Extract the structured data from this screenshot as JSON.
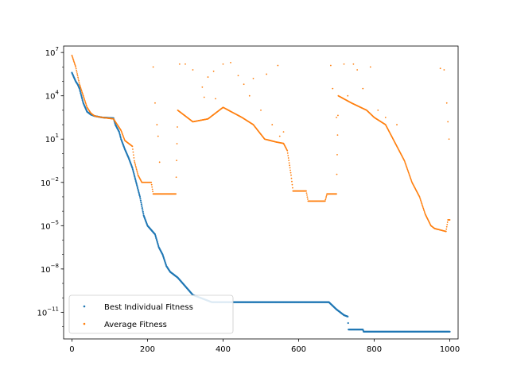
{
  "chart_data": {
    "type": "scatter",
    "title": "",
    "xlabel": "",
    "ylabel": "",
    "yscale": "log",
    "xlim": [
      -22,
      1022
    ],
    "ylim_log10": [
      -12.85,
      7.45
    ],
    "x_ticks": [
      {
        "value": 0,
        "label": "0"
      },
      {
        "value": 200,
        "label": "200"
      },
      {
        "value": 400,
        "label": "400"
      },
      {
        "value": 600,
        "label": "600"
      },
      {
        "value": 800,
        "label": "800"
      },
      {
        "value": 1000,
        "label": "1000"
      }
    ],
    "y_ticks": [
      {
        "exp": 7,
        "base": "10",
        "sup": "7"
      },
      {
        "exp": 4,
        "base": "10",
        "sup": "4"
      },
      {
        "exp": 1,
        "base": "10",
        "sup": "1"
      },
      {
        "exp": -2,
        "base": "10",
        "sup": "−2"
      },
      {
        "exp": -5,
        "base": "10",
        "sup": "−5"
      },
      {
        "exp": -8,
        "base": "10",
        "sup": "−8"
      },
      {
        "exp": -11,
        "base": "10",
        "sup": "−11"
      }
    ],
    "grid": false,
    "legend": {
      "position": "lower-left",
      "entries": [
        {
          "name": "Best Individual Fitness",
          "color": "#1f77b4"
        },
        {
          "name": "Average Fitness",
          "color": "#ff7f0e"
        }
      ]
    },
    "series": [
      {
        "name": "Best Individual Fitness",
        "color": "#1f77b4",
        "sampling": "one point per generation, log10 value linearly interpolated between keypoints",
        "log10_keypoints": [
          [
            0,
            5.6
          ],
          [
            5,
            5.3
          ],
          [
            10,
            5.0
          ],
          [
            15,
            4.8
          ],
          [
            20,
            4.5
          ],
          [
            25,
            4.0
          ],
          [
            30,
            3.5
          ],
          [
            40,
            2.9
          ],
          [
            50,
            2.7
          ],
          [
            60,
            2.6
          ],
          [
            80,
            2.5
          ],
          [
            110,
            2.45
          ],
          [
            115,
            2.0
          ],
          [
            125,
            1.5
          ],
          [
            130,
            1.0
          ],
          [
            140,
            0.3
          ],
          [
            150,
            -0.3
          ],
          [
            160,
            -1.0
          ],
          [
            170,
            -2.0
          ],
          [
            180,
            -3.0
          ],
          [
            190,
            -4.3
          ],
          [
            200,
            -5.0
          ],
          [
            220,
            -5.6
          ],
          [
            230,
            -6.5
          ],
          [
            240,
            -7.0
          ],
          [
            250,
            -7.8
          ],
          [
            260,
            -8.2
          ],
          [
            280,
            -8.6
          ],
          [
            300,
            -9.2
          ],
          [
            320,
            -9.8
          ],
          [
            370,
            -10.3
          ],
          [
            680,
            -10.3
          ],
          [
            700,
            -10.8
          ],
          [
            720,
            -11.2
          ],
          [
            730,
            -11.3
          ],
          [
            732,
            -12.2
          ],
          [
            770,
            -12.2
          ],
          [
            772,
            -12.35
          ],
          [
            1000,
            -12.35
          ]
        ]
      },
      {
        "name": "Average Fitness",
        "color": "#ff7f0e",
        "sampling": "one point per generation, log10 value linearly interpolated between keypoints",
        "log10_keypoints": [
          [
            0,
            6.8
          ],
          [
            10,
            6.0
          ],
          [
            15,
            5.4
          ],
          [
            20,
            4.8
          ],
          [
            30,
            4.0
          ],
          [
            40,
            3.2
          ],
          [
            50,
            2.8
          ],
          [
            60,
            2.6
          ],
          [
            80,
            2.5
          ],
          [
            110,
            2.4
          ],
          [
            120,
            2.0
          ],
          [
            130,
            1.6
          ],
          [
            140,
            0.9
          ],
          [
            160,
            0.5
          ],
          [
            165,
            -0.5
          ],
          [
            175,
            -1.5
          ],
          [
            185,
            -2.0
          ],
          [
            210,
            -2.0
          ],
          [
            215,
            -2.8
          ],
          [
            275,
            -2.8
          ],
          [
            280,
            3.0
          ],
          [
            320,
            2.2
          ],
          [
            360,
            2.4
          ],
          [
            400,
            3.2
          ],
          [
            450,
            2.5
          ],
          [
            480,
            2.0
          ],
          [
            510,
            1.0
          ],
          [
            540,
            0.8
          ],
          [
            560,
            0.7
          ],
          [
            570,
            0.2
          ],
          [
            580,
            -1.5
          ],
          [
            585,
            -2.6
          ],
          [
            620,
            -2.6
          ],
          [
            625,
            -3.3
          ],
          [
            670,
            -3.3
          ],
          [
            675,
            -2.8
          ],
          [
            700,
            -2.8
          ],
          [
            705,
            4.0
          ],
          [
            740,
            3.5
          ],
          [
            780,
            3.0
          ],
          [
            800,
            2.5
          ],
          [
            830,
            2.0
          ],
          [
            850,
            1.0
          ],
          [
            880,
            -0.5
          ],
          [
            900,
            -2.0
          ],
          [
            920,
            -3.0
          ],
          [
            935,
            -4.2
          ],
          [
            950,
            -5.0
          ],
          [
            960,
            -5.2
          ],
          [
            990,
            -5.4
          ],
          [
            995,
            -4.6
          ],
          [
            1000,
            -4.6
          ]
        ],
        "extra_points": [
          [
            215,
            6.0
          ],
          [
            220,
            3.5
          ],
          [
            225,
            2.0
          ],
          [
            228,
            1.2
          ],
          [
            232,
            -0.6
          ],
          [
            285,
            6.2
          ],
          [
            300,
            6.2
          ],
          [
            320,
            5.8
          ],
          [
            345,
            4.6
          ],
          [
            350,
            3.9
          ],
          [
            360,
            5.3
          ],
          [
            375,
            5.7
          ],
          [
            380,
            3.8
          ],
          [
            400,
            6.2
          ],
          [
            420,
            6.3
          ],
          [
            440,
            5.4
          ],
          [
            455,
            4.8
          ],
          [
            470,
            4.0
          ],
          [
            480,
            5.2
          ],
          [
            500,
            3.0
          ],
          [
            515,
            5.5
          ],
          [
            530,
            2.0
          ],
          [
            545,
            6.1
          ],
          [
            550,
            1.2
          ],
          [
            560,
            1.5
          ],
          [
            685,
            6.1
          ],
          [
            690,
            4.5
          ],
          [
            700,
            2.5
          ],
          [
            720,
            6.2
          ],
          [
            730,
            4.0
          ],
          [
            745,
            6.2
          ],
          [
            755,
            5.8
          ],
          [
            770,
            4.5
          ],
          [
            790,
            6.0
          ],
          [
            810,
            3.0
          ],
          [
            830,
            2.5
          ],
          [
            860,
            2.0
          ],
          [
            975,
            5.9
          ],
          [
            985,
            5.8
          ],
          [
            992,
            3.5
          ],
          [
            995,
            2.2
          ],
          [
            998,
            1.0
          ]
        ]
      }
    ]
  }
}
